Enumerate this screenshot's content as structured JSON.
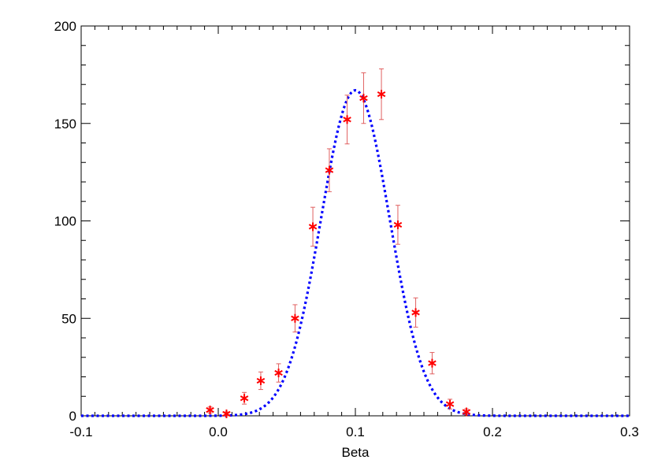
{
  "chart_data": {
    "type": "scatter",
    "title": "",
    "xlabel": "Beta",
    "ylabel": "",
    "xlim": [
      -0.1,
      0.3
    ],
    "ylim": [
      0,
      200
    ],
    "x_ticks": [
      -0.1,
      0.0,
      0.1,
      0.2,
      0.3
    ],
    "x_tick_labels": [
      "-0.1",
      "0.0",
      "0.1",
      "0.2",
      "0.3"
    ],
    "y_ticks": [
      0,
      50,
      100,
      150,
      200
    ],
    "y_tick_labels": [
      "0",
      "50",
      "100",
      "150",
      "200"
    ],
    "grid": false,
    "legend": "none",
    "colors": {
      "points": "#ff0000",
      "error_bars": "#e06060",
      "curve": "#0000ff",
      "axes": "#000000"
    },
    "series": [
      {
        "kind": "points-with-error-bars",
        "marker": "asterisk",
        "x": [
          -0.006,
          0.006,
          0.019,
          0.031,
          0.044,
          0.056,
          0.069,
          0.081,
          0.094,
          0.106,
          0.119,
          0.131,
          0.144,
          0.156,
          0.169,
          0.181
        ],
        "y": [
          3,
          1,
          9,
          18,
          22,
          50,
          97,
          126,
          152,
          163,
          165,
          98,
          53,
          27,
          6,
          2
        ],
        "yerr": [
          1.5,
          1,
          3,
          4.5,
          4.7,
          7,
          10,
          11,
          12.5,
          13,
          13,
          10,
          7.5,
          5.5,
          2.5,
          1.5
        ]
      },
      {
        "kind": "curve",
        "style": "dotted",
        "model": "gaussian",
        "amplitude": 167,
        "mean": 0.1,
        "sigma": 0.025,
        "x_range": [
          -0.1,
          0.3
        ]
      }
    ]
  }
}
